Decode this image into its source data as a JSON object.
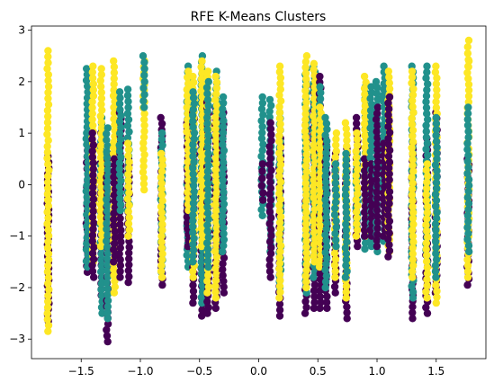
{
  "chart_data": {
    "type": "scatter",
    "title": "RFE K-Means Clusters",
    "xlabel": "",
    "ylabel": "",
    "xlim": [
      -1.92,
      1.92
    ],
    "ylim": [
      -3.38,
      3.08
    ],
    "x_ticks": [
      -1.5,
      -1.0,
      -0.5,
      0.0,
      0.5,
      1.0,
      1.5
    ],
    "x_tick_labels": [
      "−1.5",
      "−1.0",
      "−0.5",
      "0.0",
      "0.5",
      "1.0",
      "1.5"
    ],
    "y_ticks": [
      -3,
      -2,
      -1,
      0,
      1,
      2,
      3
    ],
    "y_tick_labels": [
      "−3",
      "−2",
      "−1",
      "0",
      "1",
      "2",
      "3"
    ],
    "grid": false,
    "legend": "none",
    "colors": {
      "cluster_0": "#440154",
      "cluster_1": "#21918c",
      "cluster_2": "#fde725"
    },
    "columns": [
      {
        "x": -1.78,
        "segments": [
          [
            -2.65,
            0.55,
            0
          ],
          [
            -2.85,
            -0.3,
            2
          ],
          [
            -0.3,
            2.6,
            2
          ]
        ]
      },
      {
        "x": -1.45,
        "segments": [
          [
            -1.7,
            0.9,
            0
          ],
          [
            -1.6,
            2.25,
            1
          ]
        ]
      },
      {
        "x": -1.4,
        "segments": [
          [
            -1.5,
            2.3,
            2
          ],
          [
            -1.8,
            1.0,
            0
          ]
        ]
      },
      {
        "x": -1.33,
        "segments": [
          [
            -2.15,
            1.0,
            0
          ],
          [
            -2.5,
            1.3,
            1
          ],
          [
            -1.2,
            2.25,
            2
          ]
        ]
      },
      {
        "x": -1.28,
        "segments": [
          [
            -3.05,
            0.6,
            0
          ],
          [
            -2.6,
            1.1,
            1
          ]
        ]
      },
      {
        "x": -1.22,
        "segments": [
          [
            -2.1,
            2.4,
            2
          ],
          [
            -1.5,
            0.5,
            0
          ]
        ]
      },
      {
        "x": -1.17,
        "segments": [
          [
            -1.8,
            1.4,
            0
          ],
          [
            -0.5,
            1.8,
            1
          ]
        ]
      },
      {
        "x": -1.1,
        "segments": [
          [
            -1.9,
            0.5,
            0
          ],
          [
            -0.5,
            1.85,
            1
          ],
          [
            -1.0,
            0.8,
            2
          ]
        ]
      },
      {
        "x": -0.97,
        "segments": [
          [
            -0.1,
            2.4,
            2
          ],
          [
            1.5,
            2.5,
            1
          ]
        ]
      },
      {
        "x": -0.82,
        "segments": [
          [
            -1.95,
            1.3,
            0
          ],
          [
            -1.7,
            1.0,
            1
          ],
          [
            -1.8,
            0.6,
            2
          ]
        ]
      },
      {
        "x": -0.6,
        "segments": [
          [
            -1.6,
            2.3,
            1
          ],
          [
            -1.2,
            1.2,
            0
          ],
          [
            -0.5,
            2.2,
            2
          ]
        ]
      },
      {
        "x": -0.55,
        "segments": [
          [
            -2.3,
            1.4,
            0
          ],
          [
            -1.8,
            2.1,
            2
          ],
          [
            -1.5,
            1.8,
            1
          ]
        ]
      },
      {
        "x": -0.48,
        "segments": [
          [
            -2.55,
            0.8,
            0
          ],
          [
            -2.3,
            2.5,
            1
          ],
          [
            -1.2,
            2.4,
            2
          ]
        ]
      },
      {
        "x": -0.43,
        "segments": [
          [
            -2.5,
            1.6,
            0
          ],
          [
            -2.1,
            2.2,
            2
          ],
          [
            -1.6,
            2.0,
            1
          ]
        ]
      },
      {
        "x": -0.36,
        "segments": [
          [
            -2.4,
            1.5,
            0
          ],
          [
            -1.2,
            2.2,
            1
          ],
          [
            -2.2,
            2.1,
            2
          ]
        ]
      },
      {
        "x": -0.3,
        "segments": [
          [
            -2.1,
            1.4,
            0
          ],
          [
            -1.3,
            1.7,
            1
          ]
        ]
      },
      {
        "x": 0.03,
        "segments": [
          [
            -0.6,
            1.7,
            1
          ],
          [
            -0.3,
            0.4,
            0
          ]
        ]
      },
      {
        "x": 0.1,
        "segments": [
          [
            -1.3,
            1.65,
            1
          ],
          [
            -1.8,
            1.2,
            0
          ]
        ]
      },
      {
        "x": 0.18,
        "segments": [
          [
            -2.55,
            0.9,
            0
          ],
          [
            -2.0,
            1.4,
            1
          ],
          [
            -2.2,
            2.3,
            2
          ]
        ]
      },
      {
        "x": 0.4,
        "segments": [
          [
            -2.5,
            1.4,
            0
          ],
          [
            -2.1,
            2.25,
            1
          ],
          [
            -2.0,
            2.5,
            2
          ]
        ]
      },
      {
        "x": 0.47,
        "segments": [
          [
            -2.4,
            1.9,
            0
          ],
          [
            -1.8,
            2.3,
            1
          ],
          [
            -1.5,
            2.35,
            2
          ]
        ]
      },
      {
        "x": 0.52,
        "segments": [
          [
            -2.4,
            2.1,
            0
          ],
          [
            -1.0,
            1.9,
            1
          ],
          [
            -1.6,
            1.5,
            2
          ]
        ]
      },
      {
        "x": 0.57,
        "segments": [
          [
            -2.4,
            0.9,
            0
          ],
          [
            -2.0,
            1.3,
            1
          ]
        ]
      },
      {
        "x": 0.65,
        "segments": [
          [
            -2.1,
            0.6,
            0
          ],
          [
            -1.8,
            1.0,
            2
          ],
          [
            -1.2,
            0.4,
            1
          ]
        ]
      },
      {
        "x": 0.74,
        "segments": [
          [
            -2.6,
            0.7,
            0
          ],
          [
            -2.2,
            1.2,
            2
          ],
          [
            -1.8,
            0.6,
            1
          ]
        ]
      },
      {
        "x": 0.83,
        "segments": [
          [
            -1.2,
            1.3,
            0
          ],
          [
            -0.8,
            0.6,
            1
          ],
          [
            -1.0,
            1.0,
            2
          ]
        ]
      },
      {
        "x": 0.9,
        "segments": [
          [
            -1.25,
            1.9,
            1
          ],
          [
            -1.0,
            2.1,
            2
          ],
          [
            -1.0,
            0.5,
            0
          ]
        ]
      },
      {
        "x": 0.95,
        "segments": [
          [
            -1.2,
            1.9,
            1
          ],
          [
            -1.0,
            0.4,
            0
          ]
        ]
      },
      {
        "x": 1.0,
        "segments": [
          [
            -1.3,
            2.0,
            1
          ],
          [
            -1.2,
            1.5,
            0
          ]
        ]
      },
      {
        "x": 1.06,
        "segments": [
          [
            -1.1,
            2.3,
            1
          ],
          [
            -1.0,
            0.8,
            0
          ]
        ]
      },
      {
        "x": 1.1,
        "segments": [
          [
            -1.3,
            2.2,
            2
          ],
          [
            -1.4,
            1.7,
            0
          ]
        ]
      },
      {
        "x": 1.3,
        "segments": [
          [
            -2.6,
            0.8,
            0
          ],
          [
            -2.2,
            2.3,
            1
          ],
          [
            -1.8,
            2.2,
            2
          ]
        ]
      },
      {
        "x": 1.42,
        "segments": [
          [
            -2.5,
            0.9,
            0
          ],
          [
            -1.5,
            2.3,
            1
          ],
          [
            -2.2,
            0.4,
            2
          ]
        ]
      },
      {
        "x": 1.5,
        "segments": [
          [
            -2.1,
            1.4,
            0
          ],
          [
            -2.3,
            2.3,
            2
          ],
          [
            -1.8,
            1.3,
            1
          ]
        ]
      },
      {
        "x": 1.77,
        "segments": [
          [
            -1.95,
            0.5,
            0
          ],
          [
            -1.8,
            2.4,
            2
          ],
          [
            -1.3,
            1.5,
            1
          ],
          [
            2.3,
            2.8,
            2
          ]
        ]
      }
    ]
  }
}
